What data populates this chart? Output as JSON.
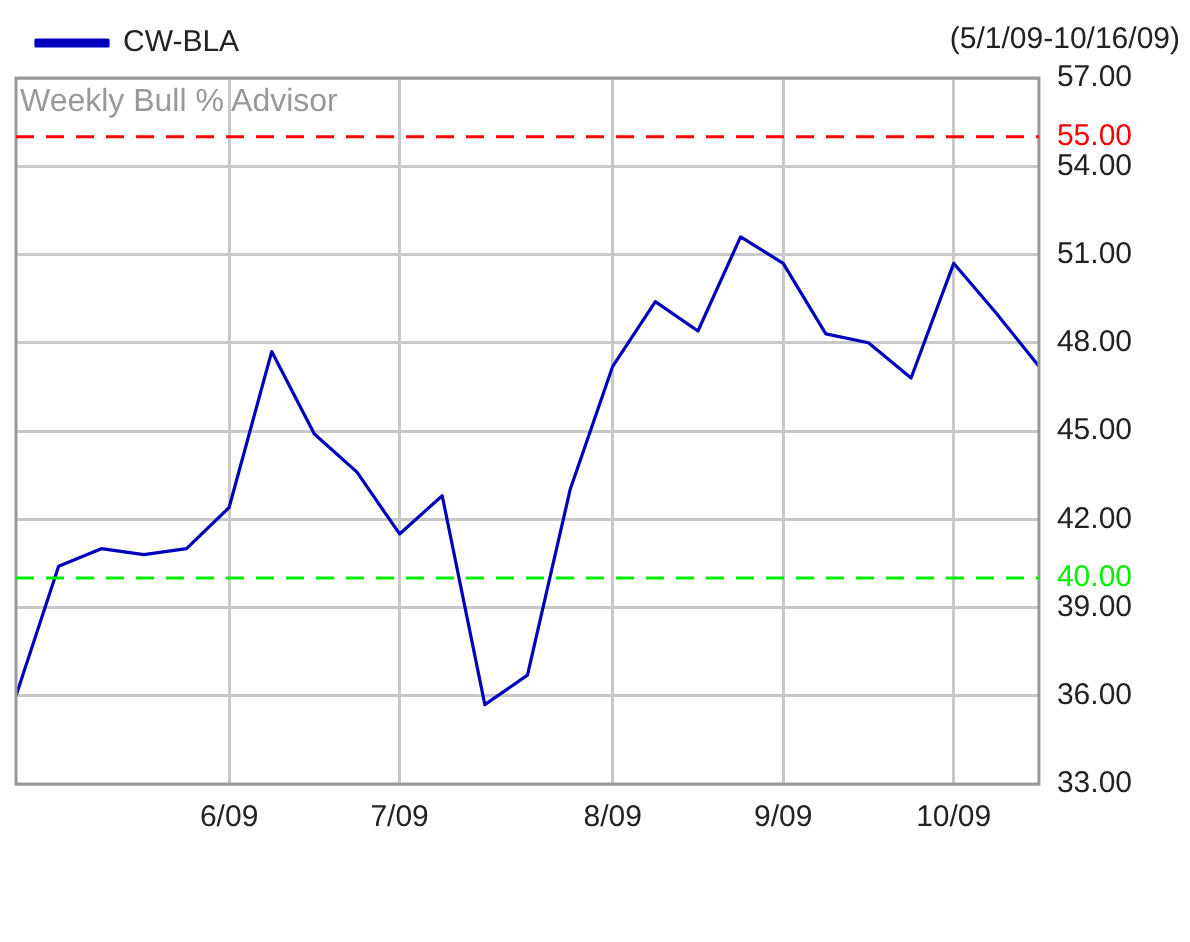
{
  "chart_data": {
    "type": "line",
    "title": "Weekly Bull % Advisor",
    "subtitle": "(5/1/09-10/16/09)",
    "categories": [
      null,
      null,
      null,
      null,
      null,
      "6/09",
      null,
      null,
      null,
      "7/09",
      null,
      null,
      null,
      null,
      "8/09",
      null,
      null,
      null,
      "9/09",
      null,
      null,
      null,
      "10/09",
      null,
      null
    ],
    "series": [
      {
        "name": "CW-BLA",
        "color": "#0000bb",
        "values": [
          36.0,
          40.4,
          41.0,
          40.8,
          41.0,
          42.4,
          47.7,
          44.9,
          43.6,
          41.5,
          42.8,
          35.7,
          36.7,
          43.0,
          47.2,
          49.4,
          48.4,
          51.6,
          50.7,
          48.3,
          48.0,
          46.8,
          50.7,
          49.0,
          47.2
        ]
      }
    ],
    "ylim": [
      33,
      57
    ],
    "yticks": [
      {
        "value": 33,
        "label": "33.00"
      },
      {
        "value": 36,
        "label": "36.00"
      },
      {
        "value": 39,
        "label": "39.00"
      },
      {
        "value": 42,
        "label": "42.00"
      },
      {
        "value": 45,
        "label": "45.00"
      },
      {
        "value": 48,
        "label": "48.00"
      },
      {
        "value": 51,
        "label": "51.00"
      },
      {
        "value": 54,
        "label": "54.00"
      },
      {
        "value": 57,
        "label": "57.00"
      }
    ],
    "ref_lines": [
      {
        "axis": "y",
        "value": 55,
        "label": "55.00",
        "color": "#ff0000",
        "line_style": "dashed"
      },
      {
        "axis": "y",
        "value": 40,
        "label": "40.00",
        "color": "#00ee00",
        "line_style": "dashed"
      }
    ],
    "grid": true,
    "legend": "top left",
    "marker": "none",
    "line_style": "solid"
  }
}
